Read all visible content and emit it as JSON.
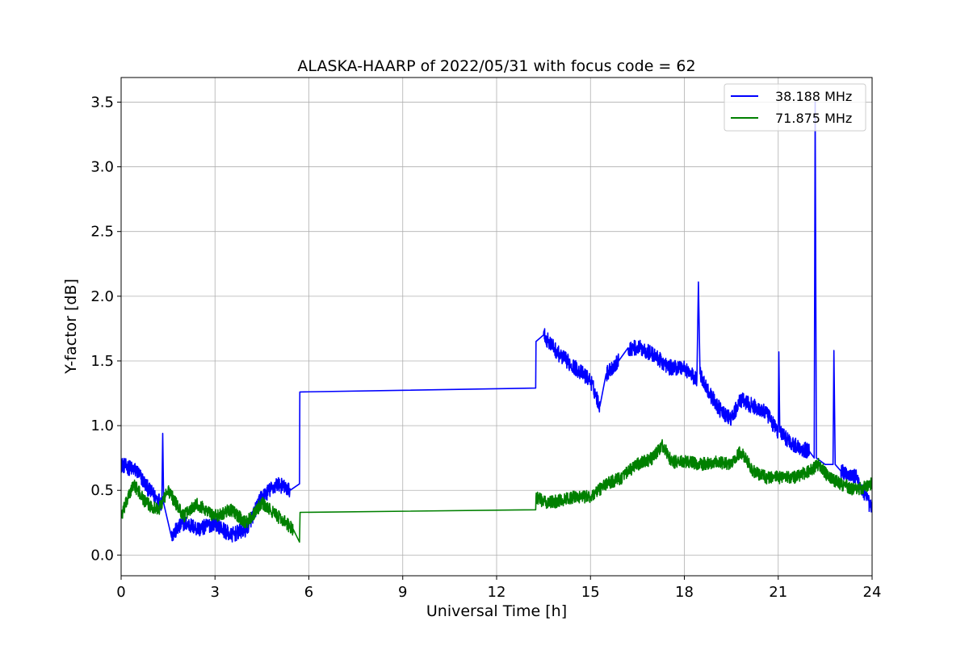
{
  "chart_data": {
    "type": "line",
    "title": "ALASKA-HAARP of 2022/05/31 with focus code = 62",
    "xlabel": "Universal Time [h]",
    "ylabel": "Y-factor [dB]",
    "xlim": [
      0,
      24
    ],
    "ylim": [
      -0.16,
      3.69
    ],
    "xticks": [
      0,
      3,
      6,
      9,
      12,
      15,
      18,
      21,
      24
    ],
    "xtick_labels": [
      "0",
      "3",
      "6",
      "9",
      "12",
      "15",
      "18",
      "21",
      "24"
    ],
    "yticks": [
      0.0,
      0.5,
      1.0,
      1.5,
      2.0,
      2.5,
      3.0,
      3.5
    ],
    "ytick_labels": [
      "0.0",
      "0.5",
      "1.0",
      "1.5",
      "2.0",
      "2.5",
      "3.0",
      "3.5"
    ],
    "grid": true,
    "legend_position": "top-right",
    "series": [
      {
        "name": "38.188 MHz",
        "color": "#0000ff",
        "x": [
          0,
          0.5,
          0.9,
          1.3,
          1.33,
          1.36,
          1.6,
          2.0,
          2.5,
          3.0,
          3.5,
          4.0,
          4.5,
          5.0,
          5.4,
          5.7,
          5.71,
          5.72,
          13.25,
          13.26,
          13.5,
          14.0,
          14.5,
          15.0,
          15.3,
          15.5,
          15.9,
          16.2,
          16.6,
          17.0,
          17.5,
          18.0,
          18.4,
          18.45,
          18.5,
          18.8,
          19.2,
          19.5,
          19.8,
          20.2,
          20.6,
          21.0,
          21.02,
          21.05,
          21.5,
          22.0,
          22.15,
          22.18,
          22.22,
          22.5,
          22.75,
          22.78,
          22.82,
          23.0,
          23.5,
          24.0
        ],
        "y": [
          0.7,
          0.65,
          0.5,
          0.4,
          0.94,
          0.4,
          0.15,
          0.25,
          0.2,
          0.25,
          0.15,
          0.2,
          0.45,
          0.55,
          0.5,
          0.55,
          1.26,
          1.26,
          1.29,
          1.65,
          1.7,
          1.55,
          1.45,
          1.35,
          1.15,
          1.4,
          1.5,
          1.6,
          1.6,
          1.55,
          1.45,
          1.45,
          1.35,
          2.11,
          1.4,
          1.25,
          1.1,
          1.05,
          1.2,
          1.15,
          1.1,
          0.95,
          1.57,
          0.95,
          0.85,
          0.8,
          0.75,
          3.5,
          0.75,
          0.7,
          0.7,
          1.58,
          0.7,
          0.65,
          0.6,
          0.35
        ]
      },
      {
        "name": "71.875 MHz",
        "color": "#008000",
        "x": [
          0,
          0.4,
          0.8,
          1.2,
          1.5,
          2.0,
          2.4,
          3.0,
          3.5,
          4.0,
          4.5,
          5.0,
          5.5,
          5.7,
          5.72,
          13.25,
          13.26,
          13.6,
          14.0,
          14.5,
          15.0,
          15.5,
          16.0,
          16.5,
          17.0,
          17.3,
          17.6,
          18.0,
          18.5,
          19.0,
          19.5,
          19.8,
          20.2,
          20.6,
          21.0,
          21.5,
          22.0,
          22.3,
          22.6,
          23.0,
          23.5,
          24.0
        ],
        "y": [
          0.3,
          0.55,
          0.4,
          0.35,
          0.5,
          0.3,
          0.4,
          0.3,
          0.35,
          0.25,
          0.4,
          0.3,
          0.2,
          0.1,
          0.33,
          0.35,
          0.45,
          0.4,
          0.42,
          0.45,
          0.45,
          0.55,
          0.6,
          0.7,
          0.75,
          0.85,
          0.72,
          0.72,
          0.7,
          0.72,
          0.7,
          0.8,
          0.65,
          0.6,
          0.6,
          0.6,
          0.65,
          0.7,
          0.6,
          0.55,
          0.5,
          0.55
        ]
      }
    ]
  }
}
